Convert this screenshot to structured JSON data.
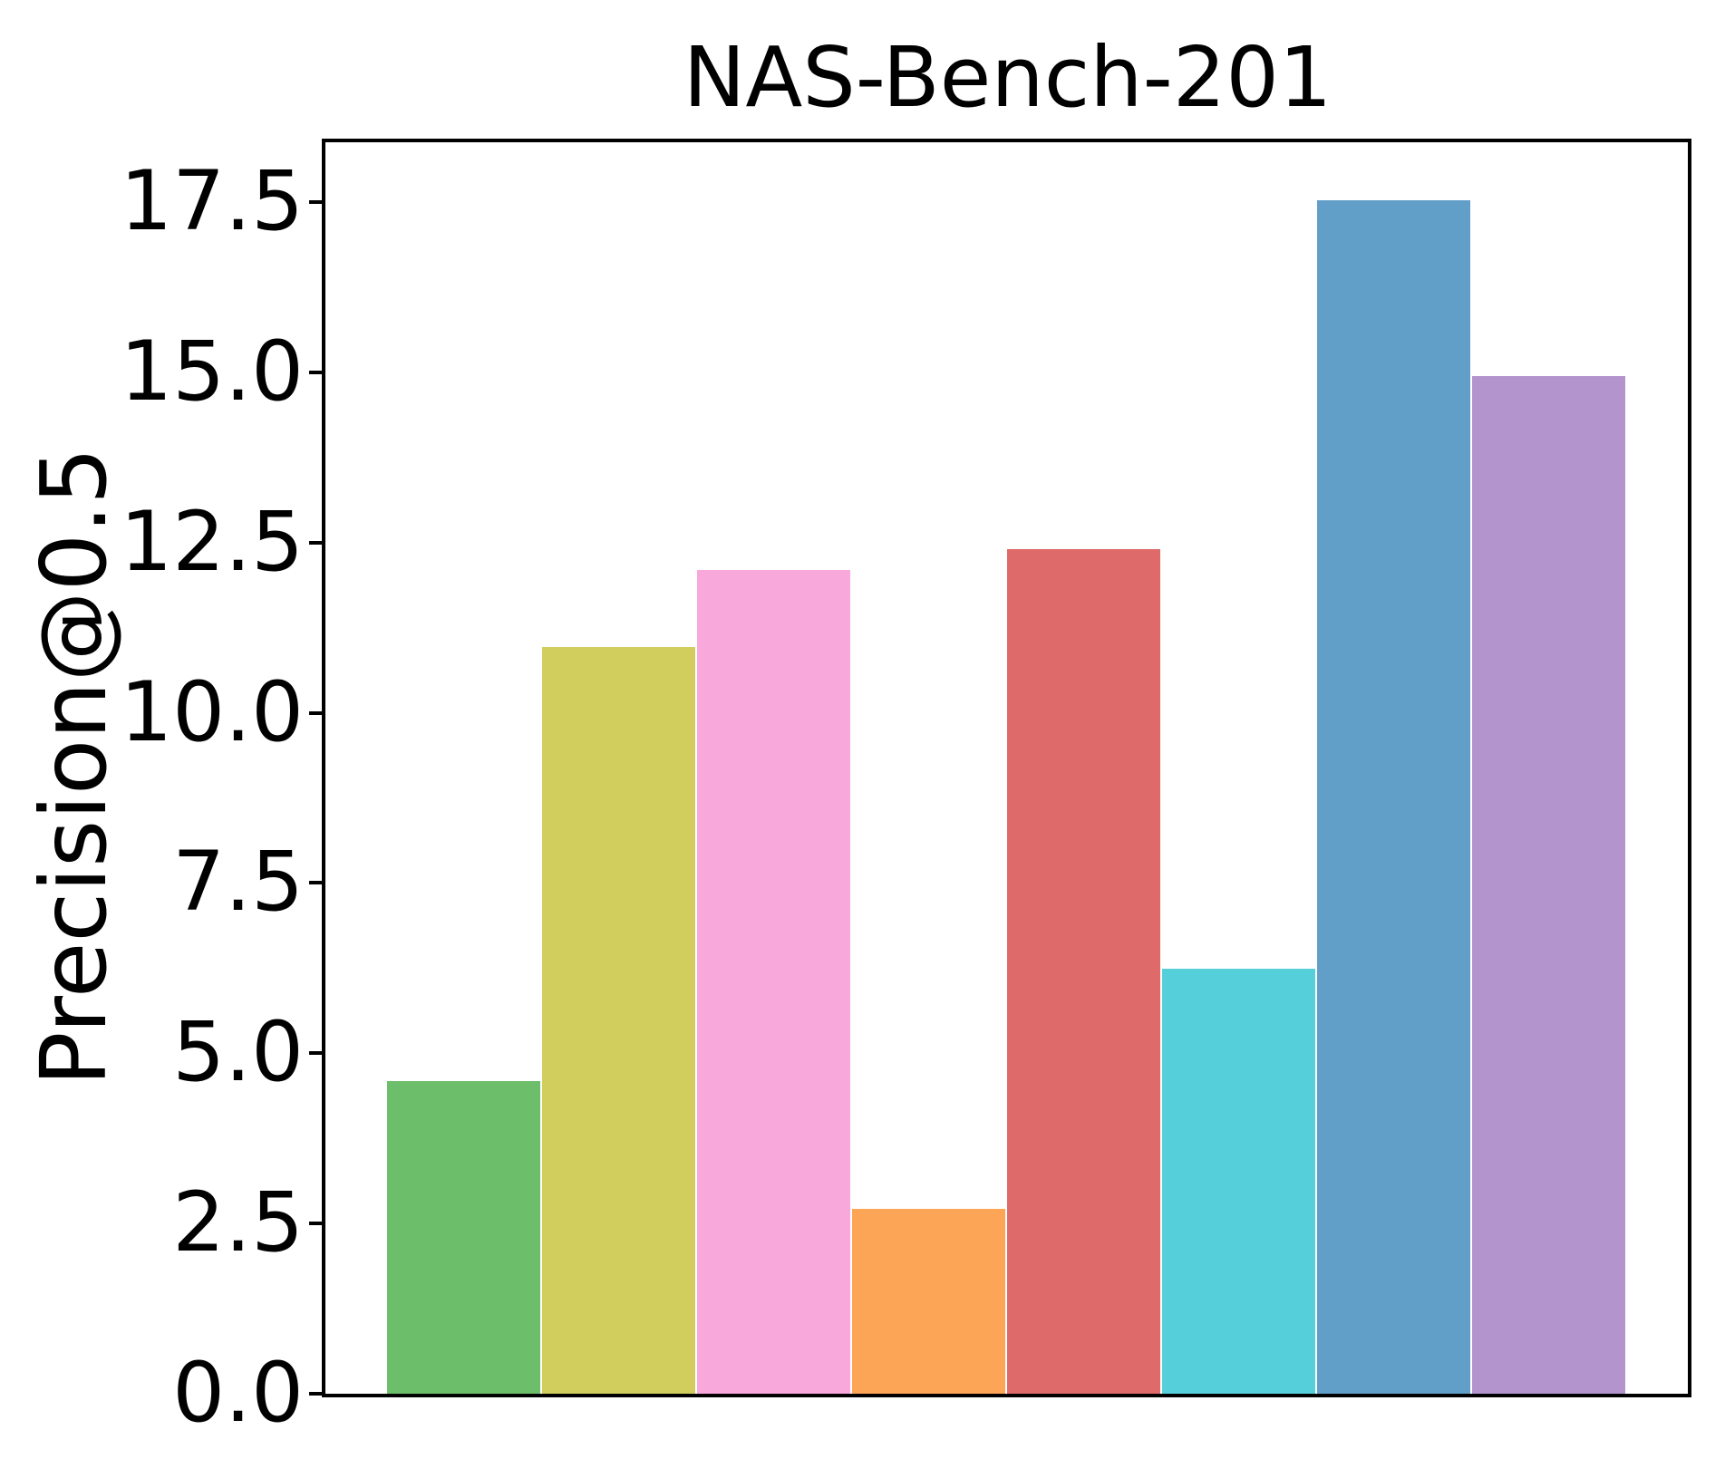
{
  "chart_data": {
    "type": "bar",
    "title": "NAS-Bench-201",
    "ylabel": "Precision@0.5",
    "xlabel": "",
    "x_tick_labels": [],
    "yticks": [
      0.0,
      2.5,
      5.0,
      7.5,
      10.0,
      12.5,
      15.0,
      17.5
    ],
    "ytick_labels": [
      "0.0",
      "2.5",
      "5.0",
      "7.5",
      "10.0",
      "12.5",
      "15.0",
      "17.5"
    ],
    "ylim": [
      0,
      18.38
    ],
    "grid": false,
    "legend": "none",
    "bars": [
      {
        "name": "bar-1",
        "value": 4.59,
        "color": "#6DBE6A"
      },
      {
        "name": "bar-2",
        "value": 10.97,
        "color": "#D1CE5E"
      },
      {
        "name": "bar-3",
        "value": 12.1,
        "color": "#F9A8DC"
      },
      {
        "name": "bar-4",
        "value": 2.71,
        "color": "#FCA556"
      },
      {
        "name": "bar-5",
        "value": 12.4,
        "color": "#DF6A6A"
      },
      {
        "name": "bar-6",
        "value": 6.24,
        "color": "#55CFD9"
      },
      {
        "name": "bar-7",
        "value": 17.53,
        "color": "#619FC9"
      },
      {
        "name": "bar-8",
        "value": 14.94,
        "color": "#B494CD"
      }
    ]
  }
}
